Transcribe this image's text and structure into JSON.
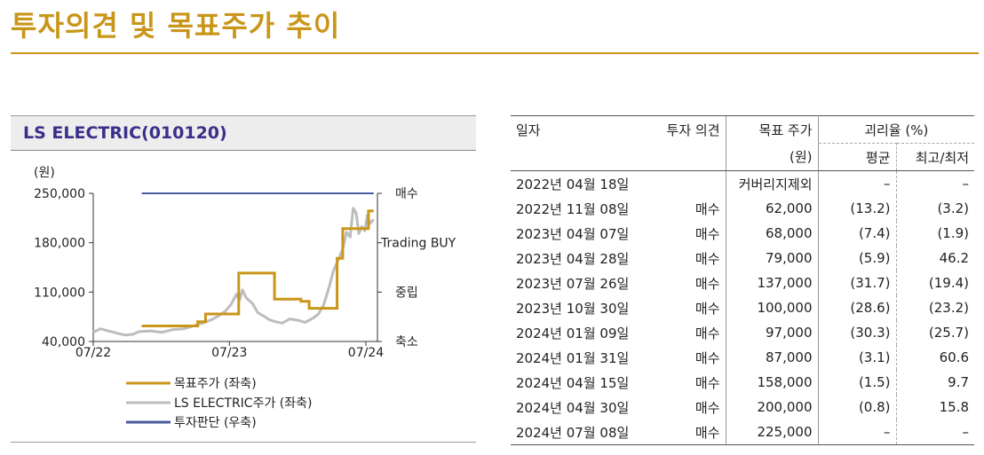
{
  "page_title": "투자의견 및 목표주가 추이",
  "chart_panel": {
    "title": "LS ELECTRIC(010120)",
    "y_unit": "(원)"
  },
  "chart_data": {
    "type": "line",
    "title": "LS ELECTRIC(010120)",
    "ylabel": "(원)",
    "ylim": [
      40000,
      250000
    ],
    "y_ticks": [
      "250,000",
      "180,000",
      "110,000",
      "40,000"
    ],
    "x_range": [
      "2022-07-01",
      "2024-08-01"
    ],
    "x_ticks": [
      {
        "date": "2022-07-01",
        "label": "07/22"
      },
      {
        "date": "2023-07-01",
        "label": "07/23"
      },
      {
        "date": "2024-07-01",
        "label": "07/24"
      }
    ],
    "right_axis_ticks": [
      "매수",
      "Trading BUY",
      "중립",
      "축소"
    ],
    "series": [
      {
        "name": "목표주가 (좌축)",
        "color": "#C9961A",
        "step": true,
        "points": [
          [
            "2022-11-08",
            62000
          ],
          [
            "2023-04-07",
            68000
          ],
          [
            "2023-04-28",
            79000
          ],
          [
            "2023-07-26",
            137000
          ],
          [
            "2023-10-30",
            100000
          ],
          [
            "2024-01-09",
            97000
          ],
          [
            "2024-01-31",
            87000
          ],
          [
            "2024-04-15",
            158000
          ],
          [
            "2024-04-30",
            200000
          ],
          [
            "2024-07-08",
            225000
          ],
          [
            "2024-07-22",
            225000
          ]
        ]
      },
      {
        "name": "LS ELECTRIC주가 (좌축)",
        "color": "#BDBDBD",
        "points": [
          [
            "2022-07-01",
            53000
          ],
          [
            "2022-07-20",
            58000
          ],
          [
            "2022-08-10",
            55000
          ],
          [
            "2022-09-01",
            52000
          ],
          [
            "2022-09-25",
            49000
          ],
          [
            "2022-10-15",
            50000
          ],
          [
            "2022-11-01",
            54000
          ],
          [
            "2022-12-01",
            55000
          ],
          [
            "2023-01-01",
            53000
          ],
          [
            "2023-02-01",
            57000
          ],
          [
            "2023-03-01",
            58000
          ],
          [
            "2023-04-01",
            63000
          ],
          [
            "2023-04-20",
            66000
          ],
          [
            "2023-05-15",
            71000
          ],
          [
            "2023-06-01",
            76000
          ],
          [
            "2023-06-20",
            83000
          ],
          [
            "2023-07-05",
            92000
          ],
          [
            "2023-07-20",
            107000
          ],
          [
            "2023-07-28",
            98000
          ],
          [
            "2023-08-05",
            113000
          ],
          [
            "2023-08-15",
            102000
          ],
          [
            "2023-09-01",
            94000
          ],
          [
            "2023-09-15",
            81000
          ],
          [
            "2023-10-01",
            76000
          ],
          [
            "2023-10-15",
            71000
          ],
          [
            "2023-11-01",
            68000
          ],
          [
            "2023-11-20",
            66000
          ],
          [
            "2023-12-10",
            72000
          ],
          [
            "2024-01-01",
            70000
          ],
          [
            "2024-01-20",
            67000
          ],
          [
            "2024-02-10",
            73000
          ],
          [
            "2024-02-25",
            79000
          ],
          [
            "2024-03-10",
            92000
          ],
          [
            "2024-03-25",
            118000
          ],
          [
            "2024-04-05",
            140000
          ],
          [
            "2024-04-20",
            158000
          ],
          [
            "2024-05-01",
            173000
          ],
          [
            "2024-05-10",
            195000
          ],
          [
            "2024-05-20",
            188000
          ],
          [
            "2024-05-28",
            229000
          ],
          [
            "2024-06-05",
            222000
          ],
          [
            "2024-06-12",
            193000
          ],
          [
            "2024-06-20",
            203000
          ],
          [
            "2024-06-28",
            197000
          ],
          [
            "2024-07-05",
            219000
          ],
          [
            "2024-07-12",
            207000
          ],
          [
            "2024-07-22",
            213000
          ]
        ]
      },
      {
        "name": "투자판단 (우축)",
        "color": "#4A5B9C",
        "points": [
          [
            "2022-11-08",
            "매수"
          ],
          [
            "2024-07-22",
            "매수"
          ]
        ]
      }
    ],
    "legend": "bottom"
  },
  "table": {
    "headers": {
      "date": "일자",
      "opinion": "투자 의견",
      "target_line1": "목표 주가",
      "target_line2": "(원)",
      "gap": "괴리율 (%)",
      "avg": "평균",
      "highlow": "최고/최저"
    },
    "rows": [
      {
        "date": "2022년 04월 18일",
        "opinion": "",
        "target": "커버리지제외",
        "avg": "–",
        "highlow": "–"
      },
      {
        "date": "2022년 11월 08일",
        "opinion": "매수",
        "target": "62,000",
        "avg": "(13.2)",
        "highlow": "(3.2)"
      },
      {
        "date": "2023년 04월 07일",
        "opinion": "매수",
        "target": "68,000",
        "avg": "(7.4)",
        "highlow": "(1.9)"
      },
      {
        "date": "2023년 04월 28일",
        "opinion": "매수",
        "target": "79,000",
        "avg": "(5.9)",
        "highlow": "46.2"
      },
      {
        "date": "2023년 07월 26일",
        "opinion": "매수",
        "target": "137,000",
        "avg": "(31.7)",
        "highlow": "(19.4)"
      },
      {
        "date": "2023년 10월 30일",
        "opinion": "매수",
        "target": "100,000",
        "avg": "(28.6)",
        "highlow": "(23.2)"
      },
      {
        "date": "2024년 01월 09일",
        "opinion": "매수",
        "target": "97,000",
        "avg": "(30.3)",
        "highlow": "(25.7)"
      },
      {
        "date": "2024년 01월 31일",
        "opinion": "매수",
        "target": "87,000",
        "avg": "(3.1)",
        "highlow": "60.6"
      },
      {
        "date": "2024년 04월 15일",
        "opinion": "매수",
        "target": "158,000",
        "avg": "(1.5)",
        "highlow": "9.7"
      },
      {
        "date": "2024년 04월 30일",
        "opinion": "매수",
        "target": "200,000",
        "avg": "(0.8)",
        "highlow": "15.8"
      },
      {
        "date": "2024년 07월 08일",
        "opinion": "매수",
        "target": "225,000",
        "avg": "–",
        "highlow": "–"
      }
    ]
  }
}
